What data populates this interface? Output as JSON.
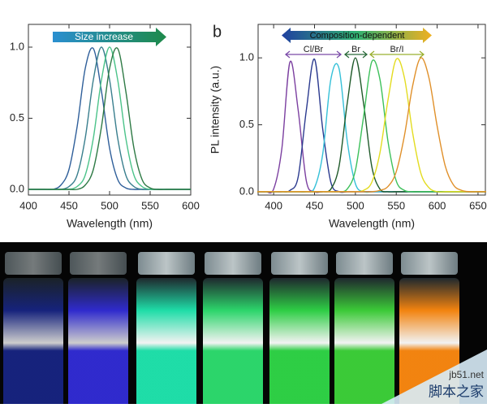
{
  "chart_data": [
    {
      "type": "line",
      "xlabel": "Wavelength (nm)",
      "arrow_label": "Size increase",
      "xlim": [
        400,
        600
      ],
      "xticks": [
        400,
        450,
        500,
        550,
        600
      ],
      "ylim": [
        -0.04,
        1.16
      ],
      "yticks": [
        {
          "value": 0,
          "label": "0.0"
        },
        {
          "value": 0.5,
          "label": "0.5"
        },
        {
          "value": 1,
          "label": "1.0"
        }
      ],
      "x": [
        400,
        410,
        420,
        430,
        440,
        450,
        460,
        470,
        480,
        490,
        500,
        510,
        520,
        530,
        540,
        550,
        560,
        570,
        580,
        590,
        600
      ],
      "series": [
        {
          "color": "#2f5f9a",
          "values": [
            0,
            0,
            0,
            0,
            0.03,
            0.14,
            0.44,
            0.85,
            0.99,
            0.69,
            0.29,
            0.07,
            0.01,
            0,
            0,
            0,
            0,
            0,
            0,
            0,
            0
          ]
        },
        {
          "color": "#3a7f8e",
          "values": [
            0,
            0,
            0,
            0,
            0,
            0.02,
            0.1,
            0.36,
            0.77,
            1,
            0.77,
            0.36,
            0.1,
            0.02,
            0,
            0,
            0,
            0,
            0,
            0,
            0
          ]
        },
        {
          "color": "#4cc38a",
          "values": [
            0,
            0,
            0,
            0,
            0,
            0,
            0.02,
            0.1,
            0.36,
            0.77,
            1,
            0.77,
            0.36,
            0.1,
            0.02,
            0,
            0,
            0,
            0,
            0,
            0
          ]
        },
        {
          "color": "#2e7a45",
          "values": [
            0,
            0,
            0,
            0,
            0,
            0,
            0,
            0.03,
            0.14,
            0.44,
            0.85,
            0.99,
            0.69,
            0.29,
            0.07,
            0.01,
            0,
            0,
            0,
            0,
            0
          ]
        }
      ]
    },
    {
      "type": "line",
      "panel_label": "b",
      "xlabel": "Wavelength (nm)",
      "ylabel": "PL intensity (a.u.)",
      "arrow_label": "Composition-dependent",
      "group_labels": [
        "Cl/Br",
        "Br",
        "Br/I"
      ],
      "xlim": [
        381,
        659
      ],
      "xticks": [
        400,
        450,
        500,
        550,
        600,
        650
      ],
      "ylim": [
        -0.025,
        1.25
      ],
      "yticks": [
        {
          "value": 0,
          "label": "0.0"
        },
        {
          "value": 0.5,
          "label": "0.5"
        },
        {
          "value": 1,
          "label": "1.0"
        }
      ],
      "x": [
        380,
        390,
        400,
        410,
        420,
        430,
        440,
        450,
        460,
        470,
        480,
        490,
        500,
        510,
        520,
        530,
        540,
        550,
        560,
        570,
        580,
        590,
        600,
        610,
        620,
        630,
        640,
        650,
        660
      ],
      "series": [
        {
          "color": "#7b3fa0",
          "values": [
            0,
            0,
            0.02,
            0.32,
            0.97,
            0.61,
            0.08,
            0,
            0,
            0,
            0,
            0,
            0,
            0,
            0,
            0,
            0,
            0,
            0,
            0,
            0,
            0,
            0,
            0,
            0,
            0,
            0,
            0,
            0
          ]
        },
        {
          "color": "#2b3a8f",
          "values": [
            0,
            0,
            0,
            0,
            0.01,
            0.11,
            0.61,
            0.99,
            0.47,
            0.07,
            0,
            0,
            0,
            0,
            0,
            0,
            0,
            0,
            0,
            0,
            0,
            0,
            0,
            0,
            0,
            0,
            0,
            0,
            0
          ]
        },
        {
          "color": "#35c0d8",
          "values": [
            0,
            0,
            0,
            0,
            0,
            0,
            0,
            0.03,
            0.28,
            0.84,
            0.92,
            0.38,
            0.06,
            0,
            0,
            0,
            0,
            0,
            0,
            0,
            0,
            0,
            0,
            0,
            0,
            0,
            0,
            0,
            0
          ]
        },
        {
          "color": "#1f5a2a",
          "values": [
            0,
            0,
            0,
            0,
            0,
            0,
            0,
            0,
            0,
            0.02,
            0.19,
            0.66,
            1,
            0.66,
            0.19,
            0.02,
            0,
            0,
            0,
            0,
            0,
            0,
            0,
            0,
            0,
            0,
            0,
            0,
            0
          ]
        },
        {
          "color": "#3cc05a",
          "values": [
            0,
            0,
            0,
            0,
            0,
            0,
            0,
            0,
            0,
            0,
            0,
            0.02,
            0.16,
            0.56,
            0.97,
            0.84,
            0.37,
            0.08,
            0.01,
            0,
            0,
            0,
            0,
            0,
            0,
            0,
            0,
            0,
            0
          ]
        },
        {
          "color": "#e3dc20",
          "values": [
            0,
            0,
            0,
            0,
            0,
            0,
            0,
            0,
            0,
            0,
            0,
            0,
            0,
            0.01,
            0.07,
            0.29,
            0.69,
            0.99,
            0.85,
            0.44,
            0.14,
            0.03,
            0,
            0,
            0,
            0,
            0,
            0,
            0
          ]
        },
        {
          "color": "#e0902a",
          "values": [
            0,
            0,
            0,
            0,
            0,
            0,
            0,
            0,
            0,
            0,
            0,
            0,
            0,
            0,
            0,
            0.01,
            0.04,
            0.15,
            0.42,
            0.79,
            1,
            0.85,
            0.49,
            0.19,
            0.05,
            0.01,
            0,
            0,
            0
          ]
        }
      ]
    }
  ],
  "photo": {
    "watermark": [
      "jb51.net",
      "脚本之家"
    ]
  }
}
